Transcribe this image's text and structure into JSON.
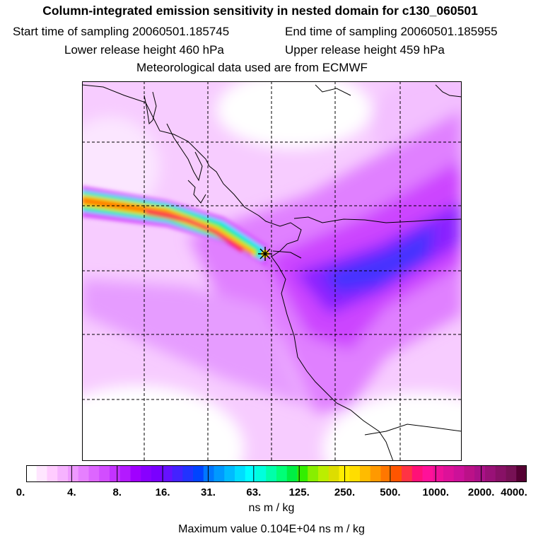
{
  "header": {
    "title": "Column-integrated emission sensitivity in nested domain for c130_060501",
    "start_label": "Start time of sampling 20060501.185745",
    "end_label": "End time of sampling 20060501.185955",
    "lower_label": "Lower release height  460 hPa",
    "upper_label": "Upper release height  459 hPa",
    "met_label": "Meteorological data used are from ECMWF"
  },
  "colorbar": {
    "ticks": [
      "0.",
      "4.",
      "8.",
      "16.",
      "31.",
      "63.",
      "125.",
      "250.",
      "500.",
      "1000.",
      "2000.",
      "4000."
    ],
    "colors": [
      "#ffffff",
      "#ffe6ff",
      "#ffccff",
      "#f6b3ff",
      "#ee99ff",
      "#e680ff",
      "#dd66ff",
      "#d24dff",
      "#c433ff",
      "#b31aff",
      "#a000ff",
      "#8800ff",
      "#7a00ff",
      "#6611ff",
      "#4422ff",
      "#2233ff",
      "#0044ff",
      "#0077ff",
      "#0099ff",
      "#00bbff",
      "#00ddff",
      "#00ffff",
      "#00ffdd",
      "#00ffaa",
      "#00ff77",
      "#00ee44",
      "#33ee00",
      "#88ee00",
      "#bbee00",
      "#dddd00",
      "#ffee00",
      "#ffdd00",
      "#ffbb00",
      "#ff9900",
      "#ff7700",
      "#ff5500",
      "#ff3344",
      "#ff1177",
      "#ff1199",
      "#ee1199",
      "#dd1199",
      "#cc1199",
      "#bb1188",
      "#aa1188",
      "#991177",
      "#881166",
      "#771155",
      "#550033"
    ],
    "units": "ns m / kg",
    "max_value": "Maximum value  0.104E+04 ns m / kg"
  }
}
